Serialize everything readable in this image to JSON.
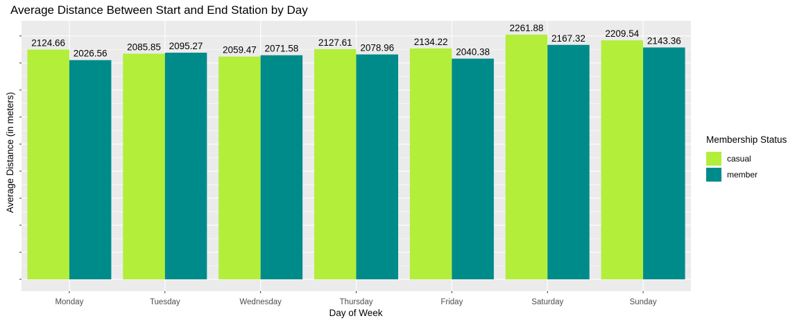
{
  "chart_data": {
    "type": "bar",
    "title": "Average Distance Between Start and End Station by Day",
    "xlabel": "Day of Week",
    "ylabel": "Average Distance (in meters)",
    "categories": [
      "Monday",
      "Tuesday",
      "Wednesday",
      "Thursday",
      "Friday",
      "Saturday",
      "Sunday"
    ],
    "series": [
      {
        "name": "casual",
        "color": "#b3ee3a",
        "values": [
          2124.66,
          2085.85,
          2059.47,
          2127.61,
          2134.22,
          2261.88,
          2209.54
        ],
        "labels": [
          "2124.66",
          "2085.85",
          "2059.47",
          "2127.61",
          "2134.22",
          "2261.88",
          "2209.54"
        ]
      },
      {
        "name": "member",
        "color": "#008b8b",
        "values": [
          2026.56,
          2095.27,
          2071.58,
          2078.96,
          2040.38,
          2167.32,
          2143.36
        ],
        "labels": [
          "2026.56",
          "2095.27",
          "2071.58",
          "2078.96",
          "2040.38",
          "2167.32",
          "2143.36"
        ]
      }
    ],
    "ylim": [
      0,
      2370
    ],
    "y_tick_labels_shown": false,
    "grid": true,
    "legend": {
      "title": "Membership Status",
      "position": "right"
    },
    "panel_background": "#ebebeb",
    "grid_color": "#ffffff"
  }
}
